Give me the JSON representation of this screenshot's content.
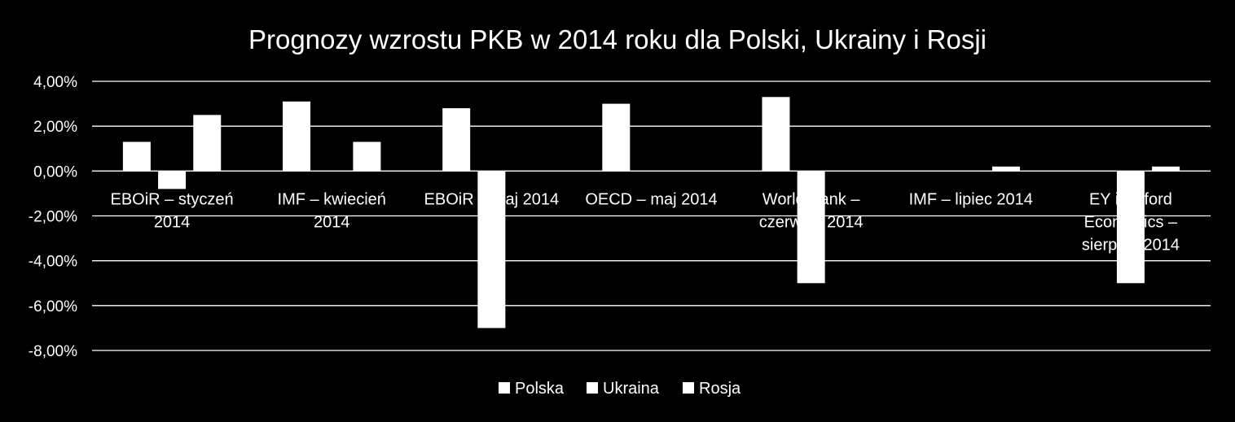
{
  "chart_data": {
    "type": "bar",
    "title": "Prognozy wzrostu PKB w 2014 roku dla Polski, Ukrainy i Rosji",
    "categories": [
      [
        "EBOiR – styczeń",
        "2014"
      ],
      [
        "IMF – kwiecień",
        "2014"
      ],
      [
        "EBOiR – maj 2014"
      ],
      [
        "OECD – maj 2014"
      ],
      [
        "World Bank –",
        "czerwiec 2014"
      ],
      [
        "IMF – lipiec 2014"
      ],
      [
        "EY i Oxford",
        "Economics –",
        "sierpień 2014"
      ]
    ],
    "series": [
      {
        "name": "Polska",
        "values": [
          1.3,
          3.1,
          2.8,
          3.0,
          3.3,
          null,
          null
        ]
      },
      {
        "name": "Ukraina",
        "values": [
          -0.8,
          null,
          -7.0,
          null,
          -5.0,
          null,
          -5.0
        ]
      },
      {
        "name": "Rosja",
        "values": [
          2.5,
          1.3,
          null,
          null,
          null,
          0.2,
          0.2
        ]
      }
    ],
    "ylim": [
      -8,
      4
    ],
    "yticks": [
      "4,00%",
      "2,00%",
      "0,00%",
      "-2,00%",
      "-4,00%",
      "-6,00%",
      "-8,00%"
    ],
    "ytick_values": [
      4,
      2,
      0,
      -2,
      -4,
      -6,
      -8
    ],
    "grid": true,
    "legend": "bottom",
    "colors": {
      "background": "#000000",
      "bars": "#ffffff",
      "gridlines": "#ffffff",
      "text": "#ffffff"
    }
  }
}
